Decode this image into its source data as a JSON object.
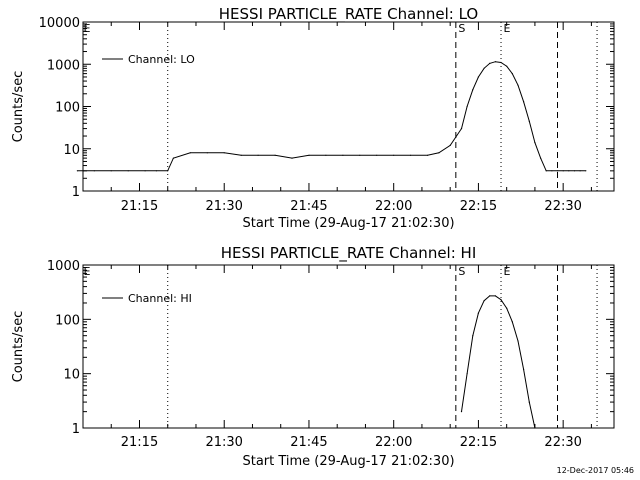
{
  "chart_data": [
    {
      "type": "line",
      "title": "HESSI PARTICLE_RATE Channel: LO",
      "xlabel": "Start Time (29-Aug-17 21:02:30)",
      "ylabel": "Counts/sec",
      "yscale": "log",
      "xlim": [
        "21:05",
        "22:39"
      ],
      "ylim": [
        1,
        10000
      ],
      "xticks": [
        "21:15",
        "21:30",
        "21:45",
        "22:00",
        "22:15",
        "22:30"
      ],
      "yticks": [
        "1",
        "10",
        "100",
        "1000",
        "10000"
      ],
      "grid": false,
      "legend": "top-left",
      "series": [
        {
          "name": "Channel: LO",
          "x": [
            "21:04",
            "21:07",
            "21:10",
            "21:13",
            "21:16",
            "21:18",
            "21:20",
            "21:21",
            "21:24",
            "21:27",
            "21:30",
            "21:33",
            "21:36",
            "21:39",
            "21:42",
            "21:45",
            "21:48",
            "21:51",
            "21:54",
            "21:57",
            "22:00",
            "22:03",
            "22:06",
            "22:08",
            "22:10",
            "22:12",
            "22:13",
            "22:14",
            "22:15",
            "22:16",
            "22:17",
            "22:18",
            "22:19",
            "22:20",
            "22:21",
            "22:22",
            "22:23",
            "22:24",
            "22:25",
            "22:26",
            "22:27",
            "22:28",
            "22:29",
            "22:30",
            "22:31",
            "22:32",
            "22:33",
            "22:34"
          ],
          "y": [
            3,
            3,
            3,
            3,
            3,
            3,
            3,
            6,
            8,
            8,
            8,
            7,
            7,
            7,
            6,
            7,
            7,
            7,
            7,
            7,
            7,
            7,
            7,
            8,
            12,
            30,
            100,
            250,
            500,
            800,
            1050,
            1150,
            1100,
            900,
            600,
            320,
            130,
            45,
            14,
            6,
            3,
            3,
            3,
            3,
            3,
            3,
            3,
            3
          ]
        }
      ],
      "vlines": [
        {
          "x": "21:20",
          "style": "dotted"
        },
        {
          "x": "22:11",
          "style": "dashed",
          "label": "S"
        },
        {
          "x": "22:19",
          "style": "dotted",
          "label": "E"
        },
        {
          "x": "22:29",
          "style": "dashed"
        },
        {
          "x": "22:36",
          "style": "dotted"
        }
      ],
      "corner_label": "E"
    },
    {
      "type": "line",
      "title": "HESSI PARTICLE_RATE Channel: HI",
      "xlabel": "Start Time (29-Aug-17 21:02:30)",
      "ylabel": "Counts/sec",
      "yscale": "log",
      "xlim": [
        "21:05",
        "22:39"
      ],
      "ylim": [
        1,
        1000
      ],
      "xticks": [
        "21:15",
        "21:30",
        "21:45",
        "22:00",
        "22:15",
        "22:30"
      ],
      "yticks": [
        "1",
        "10",
        "100",
        "1000"
      ],
      "grid": false,
      "legend": "top-left",
      "series": [
        {
          "name": "Channel: HI",
          "x": [
            "22:12",
            "22:13",
            "22:14",
            "22:15",
            "22:16",
            "22:17",
            "22:18",
            "22:19",
            "22:20",
            "22:21",
            "22:22",
            "22:23",
            "22:24",
            "22:25"
          ],
          "y": [
            2,
            10,
            50,
            130,
            220,
            270,
            270,
            230,
            160,
            90,
            40,
            12,
            3,
            1
          ]
        }
      ],
      "vlines": [
        {
          "x": "21:20",
          "style": "dotted"
        },
        {
          "x": "22:11",
          "style": "dashed",
          "label": "S"
        },
        {
          "x": "22:19",
          "style": "dotted",
          "label": "E"
        },
        {
          "x": "22:29",
          "style": "dashed"
        },
        {
          "x": "22:36",
          "style": "dotted"
        }
      ],
      "corner_label": "E"
    }
  ],
  "footer": {
    "timestamp": "12-Dec-2017 05:46"
  }
}
